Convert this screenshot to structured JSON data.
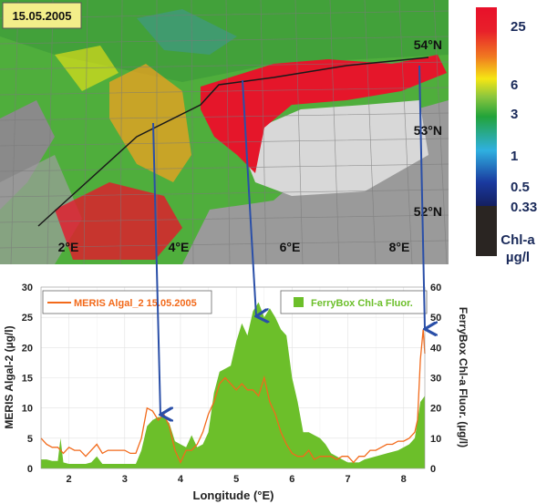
{
  "map": {
    "date_label": "15.05.2005",
    "lat_labels": [
      "54°N",
      "53°N",
      "52°N"
    ],
    "lon_labels": [
      "2°E",
      "4°E",
      "6°E",
      "8°E"
    ],
    "colorbar": {
      "ticks": [
        "25",
        "6",
        "3",
        "1",
        "0.5",
        "0.33"
      ],
      "title": "Chl-a",
      "unit": "µg/l",
      "colors": [
        "#e8102a",
        "#f07a20",
        "#f5e614",
        "#22a33a",
        "#2fb0e0",
        "#1a2f8f",
        "#2a2522"
      ]
    },
    "colors": {
      "sea": "#4fae3c",
      "bloom": "#e5162a",
      "land": "#9a9a9a",
      "cloud": "#dcdcdc",
      "track": "#1a1a1a"
    }
  },
  "chart_data": {
    "type": "line",
    "xlabel": "Longitude (°E)",
    "ylabel_left": "MERIS Algal-2 (µg/l)",
    "ylabel_right": "FerryBox Chl-a Fluor. (µg/l)",
    "xlim": [
      1.5,
      8.38
    ],
    "ylim_left": [
      0,
      30
    ],
    "ylim_right": [
      0,
      60
    ],
    "x_ticks": [
      "2",
      "3",
      "4",
      "5",
      "6",
      "7",
      "8"
    ],
    "y_ticks_left": [
      "0",
      "5",
      "10",
      "15",
      "20",
      "25",
      "30"
    ],
    "y_ticks_right": [
      "0",
      "10",
      "20",
      "30",
      "40",
      "50",
      "60"
    ],
    "grid": true,
    "series": [
      {
        "name": "MERIS Algal_2 15.05.2005",
        "axis": "left",
        "style": "line",
        "color": "#f26a1b",
        "x": [
          1.5,
          1.6,
          1.7,
          1.8,
          1.9,
          2.0,
          2.1,
          2.2,
          2.3,
          2.4,
          2.5,
          2.6,
          2.7,
          2.8,
          2.9,
          3.0,
          3.1,
          3.2,
          3.3,
          3.4,
          3.5,
          3.6,
          3.7,
          3.8,
          3.9,
          4.0,
          4.1,
          4.2,
          4.3,
          4.4,
          4.5,
          4.6,
          4.7,
          4.8,
          4.9,
          5.0,
          5.1,
          5.2,
          5.3,
          5.4,
          5.5,
          5.6,
          5.7,
          5.8,
          5.9,
          6.0,
          6.1,
          6.2,
          6.3,
          6.4,
          6.5,
          6.6,
          6.7,
          6.8,
          6.9,
          7.0,
          7.1,
          7.2,
          7.3,
          7.4,
          7.5,
          7.6,
          7.7,
          7.8,
          7.9,
          8.0,
          8.1,
          8.2,
          8.25,
          8.3,
          8.35,
          8.38
        ],
        "y": [
          5,
          4,
          3.5,
          3.5,
          2.5,
          3.5,
          3,
          3,
          2,
          3,
          4,
          2.5,
          3,
          3,
          3,
          3,
          2.5,
          2.5,
          5,
          10,
          9.5,
          8,
          9,
          7,
          3,
          1,
          3,
          3,
          4,
          6,
          9,
          11,
          14,
          15,
          14,
          13,
          14,
          13,
          13,
          12,
          15,
          11,
          9,
          6,
          4,
          2.5,
          2,
          2,
          3,
          1.5,
          2,
          2,
          2,
          1.5,
          2,
          2,
          1,
          2,
          2,
          3,
          3,
          3.5,
          4,
          4,
          4.5,
          4.5,
          5,
          6,
          8,
          18,
          23,
          19
        ]
      },
      {
        "name": "FerryBox Chl-a Fluor.",
        "axis": "right",
        "style": "area",
        "color": "#6cbf2a",
        "x": [
          1.5,
          1.6,
          1.7,
          1.8,
          1.85,
          1.9,
          2.0,
          2.1,
          2.2,
          2.3,
          2.4,
          2.5,
          2.6,
          2.7,
          2.8,
          2.9,
          3.0,
          3.1,
          3.2,
          3.3,
          3.4,
          3.5,
          3.6,
          3.7,
          3.8,
          3.9,
          4.0,
          4.1,
          4.2,
          4.3,
          4.4,
          4.5,
          4.6,
          4.7,
          4.8,
          4.9,
          5.0,
          5.1,
          5.2,
          5.3,
          5.4,
          5.5,
          5.6,
          5.7,
          5.8,
          5.9,
          6.0,
          6.1,
          6.2,
          6.3,
          6.4,
          6.5,
          6.6,
          6.7,
          6.8,
          6.9,
          7.0,
          7.1,
          7.2,
          7.3,
          7.5,
          7.7,
          7.9,
          8.1,
          8.2,
          8.3,
          8.38
        ],
        "y": [
          3,
          3,
          2.5,
          2.5,
          10,
          2,
          1.5,
          1.5,
          1.5,
          1.5,
          2,
          4,
          1.5,
          1.5,
          1.5,
          1.5,
          1.5,
          1.5,
          1.5,
          6,
          14,
          16,
          17,
          17,
          15,
          9,
          8,
          7,
          11,
          7,
          8,
          12,
          25,
          32,
          33,
          34,
          42,
          48,
          44,
          52,
          55,
          50,
          53,
          50,
          46,
          44,
          30,
          22,
          12,
          12,
          11,
          10,
          8,
          5,
          4,
          3,
          2,
          2,
          2,
          3,
          4,
          5,
          6,
          8,
          10,
          22,
          24
        ]
      }
    ]
  }
}
